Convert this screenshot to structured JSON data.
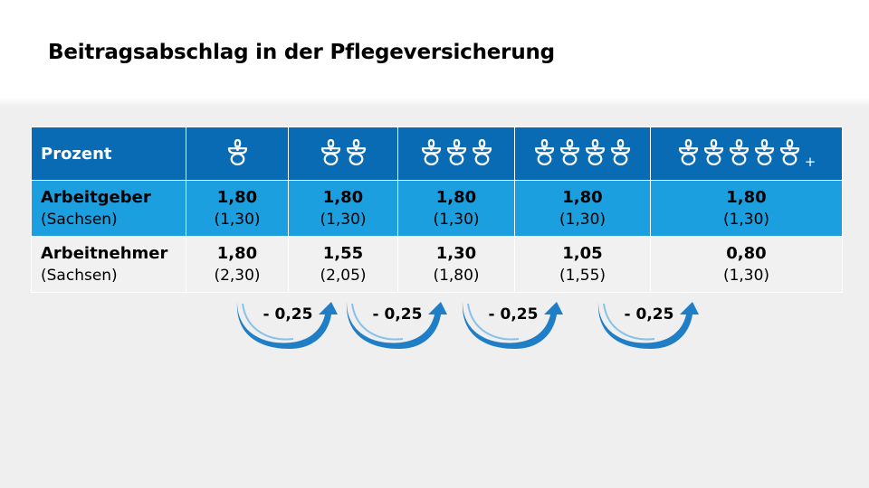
{
  "title": "Beitragsabschlag in der Pflegeversicherung",
  "table": {
    "header_label": "Prozent",
    "columns": [
      {
        "children": 1,
        "plus": ""
      },
      {
        "children": 2,
        "plus": ""
      },
      {
        "children": 3,
        "plus": ""
      },
      {
        "children": 4,
        "plus": ""
      },
      {
        "children": 5,
        "plus": "+"
      }
    ],
    "rows": [
      {
        "label": "Arbeitgeber",
        "sublabel": "(Sachsen)",
        "cells": [
          {
            "value": "1,80",
            "sub": "(1,30)"
          },
          {
            "value": "1,80",
            "sub": "(1,30)"
          },
          {
            "value": "1,80",
            "sub": "(1,30)"
          },
          {
            "value": "1,80",
            "sub": "(1,30)"
          },
          {
            "value": "1,80",
            "sub": "(1,30)"
          }
        ]
      },
      {
        "label": "Arbeitnehmer",
        "sublabel": "(Sachsen)",
        "cells": [
          {
            "value": "1,80",
            "sub": "(2,30)"
          },
          {
            "value": "1,55",
            "sub": "(2,05)"
          },
          {
            "value": "1,30",
            "sub": "(1,80)"
          },
          {
            "value": "1,05",
            "sub": "(1,55)"
          },
          {
            "value": "0,80",
            "sub": "(1,30)"
          }
        ]
      }
    ]
  },
  "arrows": [
    {
      "label": "- 0,25"
    },
    {
      "label": "- 0,25"
    },
    {
      "label": "- 0,25"
    },
    {
      "label": "- 0,25"
    }
  ],
  "colors": {
    "header_blue": "#0a6bb5",
    "row_light_blue": "#1c9fdf",
    "row_grey": "#f1f1f2",
    "arrow_blue": "#1f7ec6"
  },
  "icon_name": "pacifier-icon"
}
